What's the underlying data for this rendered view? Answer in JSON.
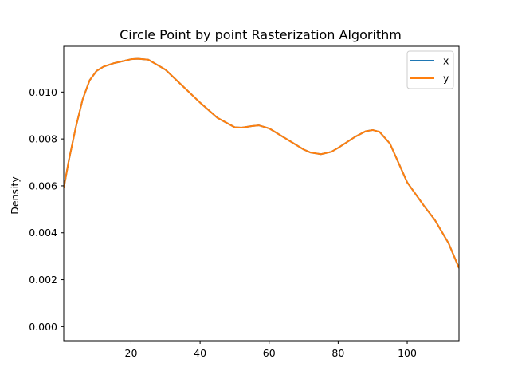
{
  "chart_data": {
    "type": "line",
    "title": "Circle Point by point Rasterization Algorithm",
    "xlabel": "",
    "ylabel": "Density",
    "xlim": [
      0.5,
      115
    ],
    "ylim": [
      -0.0006,
      0.01195
    ],
    "xticks": [
      20,
      40,
      60,
      80,
      100
    ],
    "xtick_labels": [
      "20",
      "40",
      "60",
      "80",
      "100"
    ],
    "yticks": [
      0,
      0.002,
      0.004,
      0.006,
      0.008,
      0.01
    ],
    "ytick_labels": [
      "0.000",
      "0.002",
      "0.004",
      "0.006",
      "0.008",
      "0.010"
    ],
    "grid": false,
    "legend_position": "top-right",
    "series": [
      {
        "name": "x",
        "color": "#1f77b4",
        "x": [
          0.5,
          2,
          4,
          6,
          8,
          10,
          12,
          15,
          18,
          20,
          22,
          25,
          30,
          35,
          40,
          45,
          50,
          52,
          55,
          57,
          60,
          65,
          70,
          72,
          75,
          78,
          80,
          85,
          88,
          90,
          92,
          95,
          100,
          105,
          108,
          112,
          115
        ],
        "y": [
          0.0059,
          0.0071,
          0.0085,
          0.0097,
          0.0105,
          0.0109,
          0.01108,
          0.01123,
          0.01133,
          0.0114,
          0.01142,
          0.01138,
          0.01095,
          0.01025,
          0.00955,
          0.0089,
          0.0085,
          0.00848,
          0.00855,
          0.00858,
          0.00845,
          0.008,
          0.00755,
          0.00742,
          0.00735,
          0.00745,
          0.00762,
          0.0081,
          0.00833,
          0.00838,
          0.0083,
          0.0078,
          0.00615,
          0.00512,
          0.00455,
          0.00355,
          0.0025
        ]
      },
      {
        "name": "y",
        "color": "#ff7f0e",
        "x": [
          0.5,
          2,
          4,
          6,
          8,
          10,
          12,
          15,
          18,
          20,
          22,
          25,
          30,
          35,
          40,
          45,
          50,
          52,
          55,
          57,
          60,
          65,
          70,
          72,
          75,
          78,
          80,
          85,
          88,
          90,
          92,
          95,
          100,
          105,
          108,
          112,
          115
        ],
        "y": [
          0.0059,
          0.0071,
          0.0085,
          0.0097,
          0.0105,
          0.0109,
          0.01108,
          0.01123,
          0.01133,
          0.0114,
          0.01142,
          0.01138,
          0.01095,
          0.01025,
          0.00955,
          0.0089,
          0.0085,
          0.00848,
          0.00855,
          0.00858,
          0.00845,
          0.008,
          0.00755,
          0.00742,
          0.00735,
          0.00745,
          0.00762,
          0.0081,
          0.00833,
          0.00838,
          0.0083,
          0.0078,
          0.00615,
          0.00512,
          0.00455,
          0.00355,
          0.0025
        ]
      }
    ]
  }
}
